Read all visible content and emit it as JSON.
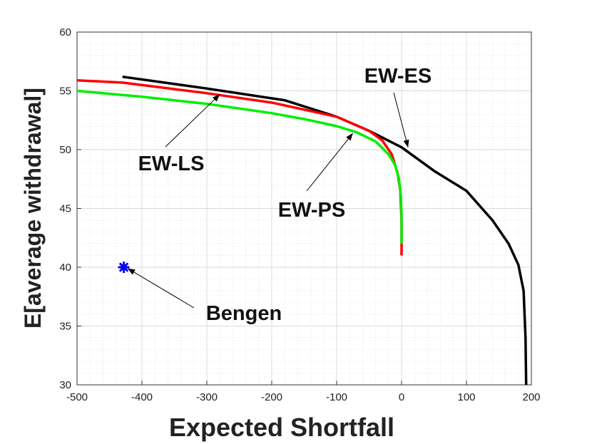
{
  "chart_data": {
    "type": "line",
    "title": "",
    "xlabel": "Expected Shortfall",
    "ylabel": "E[average withdrawal]",
    "xlim": [
      -500,
      200
    ],
    "ylim": [
      30,
      60
    ],
    "xticks": [
      -500,
      -400,
      -300,
      -200,
      -100,
      0,
      100,
      200
    ],
    "yticks": [
      30,
      35,
      40,
      45,
      50,
      55,
      60
    ],
    "xtick_labels": [
      "-500",
      "-400",
      "-300",
      "-200",
      "-100",
      "0",
      "100",
      "200"
    ],
    "ytick_labels": [
      "30",
      "35",
      "40",
      "45",
      "50",
      "55",
      "60"
    ],
    "grid": "on (major and minor)",
    "series": [
      {
        "name": "EW-ES",
        "color": "#000000",
        "x": [
          -430,
          -300,
          -180,
          -100,
          -50,
          0,
          50,
          100,
          140,
          165,
          180,
          188,
          191,
          192
        ],
        "y": [
          56.2,
          55.2,
          54.2,
          52.8,
          51.6,
          50.2,
          48.2,
          46.5,
          44.0,
          42.0,
          40.2,
          38.0,
          34.0,
          30.0
        ]
      },
      {
        "name": "EW-LS",
        "color": "#ff0000",
        "x": [
          -500,
          -430,
          -300,
          -200,
          -100,
          -50,
          -30,
          -15,
          -6,
          -2,
          0,
          0
        ],
        "y": [
          55.9,
          55.7,
          54.8,
          54.0,
          52.8,
          51.6,
          50.8,
          49.6,
          48.0,
          46.5,
          44.0,
          41.0
        ]
      },
      {
        "name": "EW-PS",
        "color": "#00ee00",
        "x": [
          -500,
          -400,
          -300,
          -200,
          -150,
          -100,
          -70,
          -40,
          -20,
          -10,
          -4,
          -1,
          0,
          0
        ],
        "y": [
          55.0,
          54.5,
          53.9,
          53.1,
          52.6,
          52.0,
          51.5,
          50.7,
          49.6,
          48.7,
          47.5,
          46.0,
          44.5,
          42.0
        ]
      },
      {
        "name": "Bengen",
        "color": "#0000ff",
        "marker": "asterisk",
        "x": [
          -428
        ],
        "y": [
          40.0
        ]
      }
    ],
    "annotations": [
      {
        "text": "EW-ES",
        "arrow_to": [
          10,
          50.2
        ]
      },
      {
        "text": "EW-LS",
        "arrow_to": [
          -280,
          54.7
        ]
      },
      {
        "text": "EW-PS",
        "arrow_to": [
          -75,
          51.4
        ]
      },
      {
        "text": "Bengen",
        "arrow_to": [
          -422,
          39.9
        ]
      }
    ]
  }
}
